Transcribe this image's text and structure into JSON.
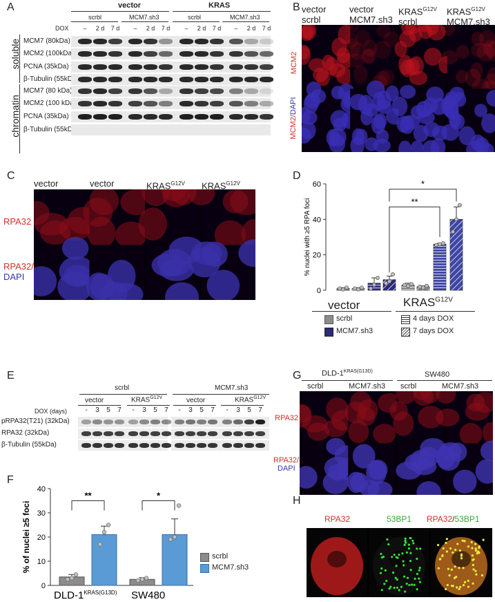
{
  "panel_letters": [
    "A",
    "B",
    "C",
    "D",
    "E",
    "F",
    "G",
    "H"
  ],
  "A": {
    "dox_label": "DOX",
    "groups": [
      "vector",
      "KRAS"
    ],
    "subgroups": [
      "scrbl",
      "MCM7.sh3",
      "scrbl",
      "MCM7.sh3"
    ],
    "lanes": [
      "–",
      "2 d",
      "7 d",
      "–",
      "2 d",
      "7 d",
      "–",
      "2 d",
      "7 d",
      "–",
      "2 d",
      "7 d"
    ],
    "fractions": [
      "soluble",
      "chromatin"
    ],
    "soluble_rows": [
      "MCM7 (80kDa)",
      "MCM2 (100kDa)",
      "PCNA (35kDa)",
      "β-Tubulin (55kDa)"
    ],
    "chromatin_rows": [
      "MCM7 (80 kDa)",
      "MCM2 (100 kDa)",
      "PCNA (35kDa)",
      "β-Tubulin (55kDa)"
    ]
  },
  "B": {
    "cols": [
      [
        "vector",
        "scrbl"
      ],
      [
        "vector",
        "MCM7.sh3"
      ],
      [
        "KRAS",
        "G12V",
        "scrbl"
      ],
      [
        "KRAS",
        "G12V",
        "MCM7.sh3"
      ]
    ],
    "row1": "MCM2",
    "row2a": "MCM2/",
    "row2b": "DAPI"
  },
  "C": {
    "cols": [
      [
        "vector",
        "scrbl"
      ],
      [
        "vector",
        "MCM7.sh3"
      ],
      [
        "KRAS",
        "G12V",
        "scrbl"
      ],
      [
        "KRAS",
        "G12V",
        "MCM7.sh3"
      ]
    ],
    "row1": "RPA32",
    "row2a": "RPA32/",
    "row2b": "DAPI"
  },
  "D": {
    "ylabel": "% nuclei with ≥5 RPA foci",
    "yticks": [
      "0",
      "20",
      "40",
      "60"
    ],
    "sig1": "**",
    "sig2": "*",
    "group1": "vector",
    "group2a": "KRAS",
    "group2b": "G12V",
    "legend": {
      "scrbl": "scrbl",
      "sh3": "MCM7.sh3",
      "d4": "4 days DOX",
      "d7": "7 days DOX"
    }
  },
  "E": {
    "top_groups": [
      "scrbl",
      "MCM7.sh3"
    ],
    "sub_groups": [
      "vector",
      "KRAS",
      "vector",
      "KRAS"
    ],
    "sub_sup": "G12V",
    "dox_label": "DOX (days)",
    "lanes": [
      "-",
      "3",
      "5",
      "7",
      "-",
      "3",
      "5",
      "7",
      "-",
      "3",
      "5",
      "7",
      "-",
      "3",
      "5",
      "7"
    ],
    "rows": [
      "pRPA32(T21) (32kDa)",
      "RPA32 (32kDa)",
      "β-Tubulin (55kDa)"
    ]
  },
  "F": {
    "ylabel": "% of nuclei ≥5 foci",
    "yticks": [
      "0",
      "10",
      "20",
      "30",
      "40"
    ],
    "sig1": "**",
    "sig2": "*",
    "groups": [
      {
        "label_main": "DLD-1",
        "label_sup": "KRAS(G13D)"
      },
      {
        "label_main": "SW480",
        "label_sup": ""
      }
    ],
    "legend": [
      "scrbl",
      "MCM7.sh3"
    ]
  },
  "G": {
    "lines": [
      {
        "main": "DLD-1",
        "sup": "KRAS(G13D)"
      },
      {
        "main": "SW480",
        "sup": ""
      }
    ],
    "cols": [
      "scrbl",
      "MCM7.sh3",
      "scrbl",
      "MCM7.sh3"
    ],
    "row1": "RPA32",
    "row2a": "RPA32/",
    "row2b": "DAPI"
  },
  "H": {
    "cols": [
      "RPA32",
      "53BP1",
      "RPA32",
      "/",
      "53BP1"
    ]
  },
  "colors": {
    "bar_dark": "#2c2a7c",
    "bar_grey": "#8c8c8c",
    "bar_light_blue": "#5b9bd5",
    "bar_kras_blue": "#3d46a4",
    "red_label": "#d2302a",
    "blue_label": "#3436a8",
    "green_label": "#35a835"
  },
  "chart_data": [
    {
      "id": "D",
      "type": "bar",
      "ylabel": "% nuclei with ≥5 RPA foci",
      "ylim": [
        0,
        60
      ],
      "categories": [
        "vector scrbl 4d",
        "vector scrbl 7d",
        "vector MCM7.sh3 4d",
        "vector MCM7.sh3 7d",
        "KRAS scrbl 4d",
        "KRAS scrbl 7d",
        "KRAS MCM7.sh3 4d",
        "KRAS MCM7.sh3 7d"
      ],
      "values": [
        1,
        1,
        4,
        6,
        3,
        2,
        26,
        40
      ],
      "errors": [
        0.5,
        0.5,
        3,
        2,
        1,
        0.5,
        0.5,
        7
      ],
      "points": [
        [
          1,
          0.5,
          1.5
        ],
        [
          1,
          0.5,
          1.5
        ],
        [
          1,
          3,
          7
        ],
        [
          4,
          5,
          9
        ],
        [
          3,
          2.5,
          3.5
        ],
        [
          2,
          1.5,
          2.5
        ],
        [
          25.5,
          26,
          26.5
        ],
        [
          33,
          40,
          48
        ]
      ]
    },
    {
      "id": "F",
      "type": "bar",
      "ylabel": "% of nuclei ≥5 foci",
      "ylim": [
        0,
        40
      ],
      "categories": [
        "DLD-1 scrbl",
        "DLD-1 MCM7.sh3",
        "SW480 scrbl",
        "SW480 MCM7.sh3"
      ],
      "values": [
        3.5,
        21,
        2.5,
        21
      ],
      "errors": [
        1,
        3.5,
        0.7,
        6.5
      ],
      "points": [
        [
          2.5,
          3,
          4.5
        ],
        [
          17,
          22,
          25
        ],
        [
          2,
          2.5,
          3
        ],
        [
          19,
          20,
          33
        ]
      ]
    }
  ]
}
